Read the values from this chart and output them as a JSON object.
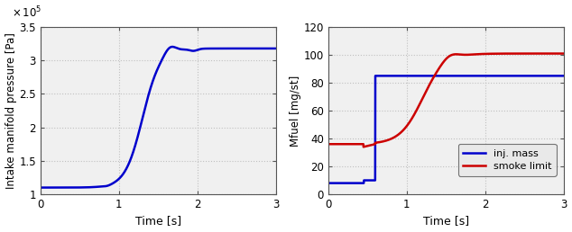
{
  "left_ylabel": "Intake manifold pressure [Pa]",
  "left_xlabel": "Time [s]",
  "left_xlim": [
    0,
    3
  ],
  "left_ylim": [
    100000.0,
    350000.0
  ],
  "left_yticks": [
    100000.0,
    150000.0,
    200000.0,
    250000.0,
    300000.0,
    350000.0
  ],
  "left_xticks": [
    0,
    1,
    2,
    3
  ],
  "left_line_color": "#0000cc",
  "right_ylabel": "Mfuel [mg/st]",
  "right_xlabel": "Time [s]",
  "right_xlim": [
    0,
    3
  ],
  "right_ylim": [
    0,
    120
  ],
  "right_yticks": [
    0,
    20,
    40,
    60,
    80,
    100,
    120
  ],
  "right_xticks": [
    0,
    1,
    2,
    3
  ],
  "inj_mass_color": "#0000cc",
  "smoke_limit_color": "#cc0000",
  "legend_labels": [
    "inj. mass",
    "smoke limit"
  ],
  "grid_color": "#c0c0c0",
  "axes_facecolor": "#f0f0f0",
  "spine_color": "#555555"
}
